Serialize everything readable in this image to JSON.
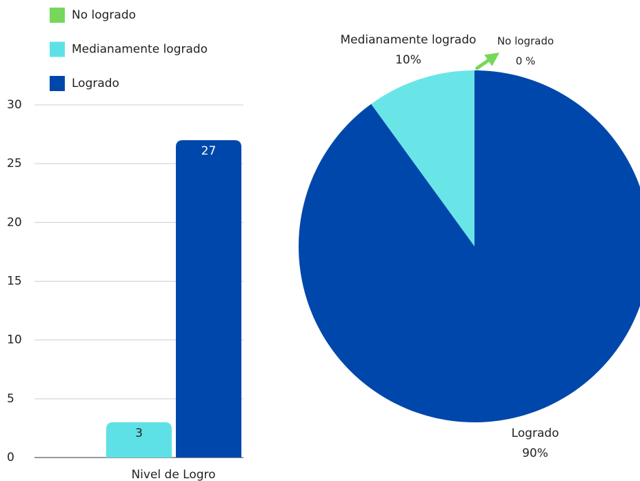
{
  "chart_data": [
    {
      "type": "bar",
      "categories": [
        "Nivel de Logro"
      ],
      "series": [
        {
          "name": "No logrado",
          "color": "#76d75a",
          "values": [
            0
          ]
        },
        {
          "name": "Medianamente logrado",
          "color": "#5ee1e6",
          "values": [
            3
          ]
        },
        {
          "name": "Logrado",
          "color": "#0047ab",
          "values": [
            27
          ]
        }
      ],
      "ylim": [
        0,
        30
      ],
      "yticks": [
        0,
        5,
        10,
        15,
        20,
        25,
        30
      ],
      "grid": true,
      "legend": "top-left"
    },
    {
      "type": "pie",
      "categories": [
        "No logrado",
        "Medianamente logrado",
        "Logrado"
      ],
      "values": [
        0,
        10,
        90
      ],
      "value_labels": [
        "0 %",
        "10%",
        "90%"
      ],
      "colors": [
        "#76d75a",
        "#69e5e8",
        "#0047ab"
      ]
    }
  ]
}
